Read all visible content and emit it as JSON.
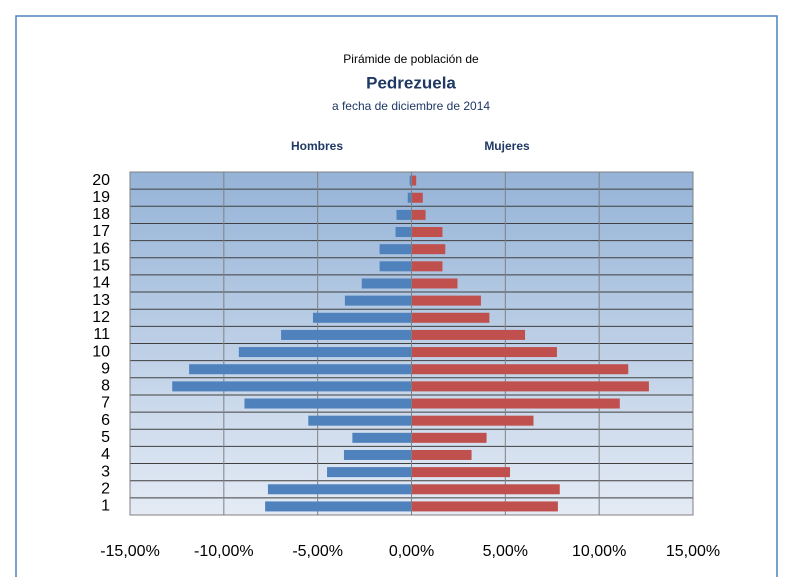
{
  "chart_data": {
    "type": "pyramid",
    "title": "Pedrezuela",
    "subtitle_top": "Pirámide de población de",
    "subtitle_bottom": "a fecha de diciembre de 2014",
    "categories": [
      "1",
      "2",
      "3",
      "4",
      "5",
      "6",
      "7",
      "8",
      "9",
      "10",
      "11",
      "12",
      "13",
      "14",
      "15",
      "16",
      "17",
      "18",
      "19",
      "20"
    ],
    "series": [
      {
        "name": "Hombres",
        "color": "#4f81bd",
        "values": [
          -7.8,
          -7.65,
          -4.5,
          -3.6,
          -3.15,
          -5.5,
          -8.9,
          -12.75,
          -11.85,
          -9.2,
          -6.95,
          -5.25,
          -3.55,
          -2.65,
          -1.7,
          -1.7,
          -0.85,
          -0.8,
          -0.2,
          -0.1
        ]
      },
      {
        "name": "Mujeres",
        "color": "#c0504d",
        "values": [
          7.8,
          7.9,
          5.25,
          3.2,
          4.0,
          6.5,
          11.1,
          12.65,
          11.55,
          7.75,
          6.05,
          4.15,
          3.7,
          2.45,
          1.65,
          1.8,
          1.65,
          0.75,
          0.6,
          0.25
        ]
      }
    ],
    "xlim": [
      -15,
      15
    ],
    "xticks": [
      {
        "value": -15,
        "label": "-15,00%"
      },
      {
        "value": -10,
        "label": "-10,00%"
      },
      {
        "value": -5,
        "label": "-5,00%"
      },
      {
        "value": 0,
        "label": "0,00%"
      },
      {
        "value": 5,
        "label": "5,00%"
      },
      {
        "value": 10,
        "label": "10,00%"
      },
      {
        "value": 15,
        "label": "15,00%"
      }
    ],
    "grid": true
  }
}
